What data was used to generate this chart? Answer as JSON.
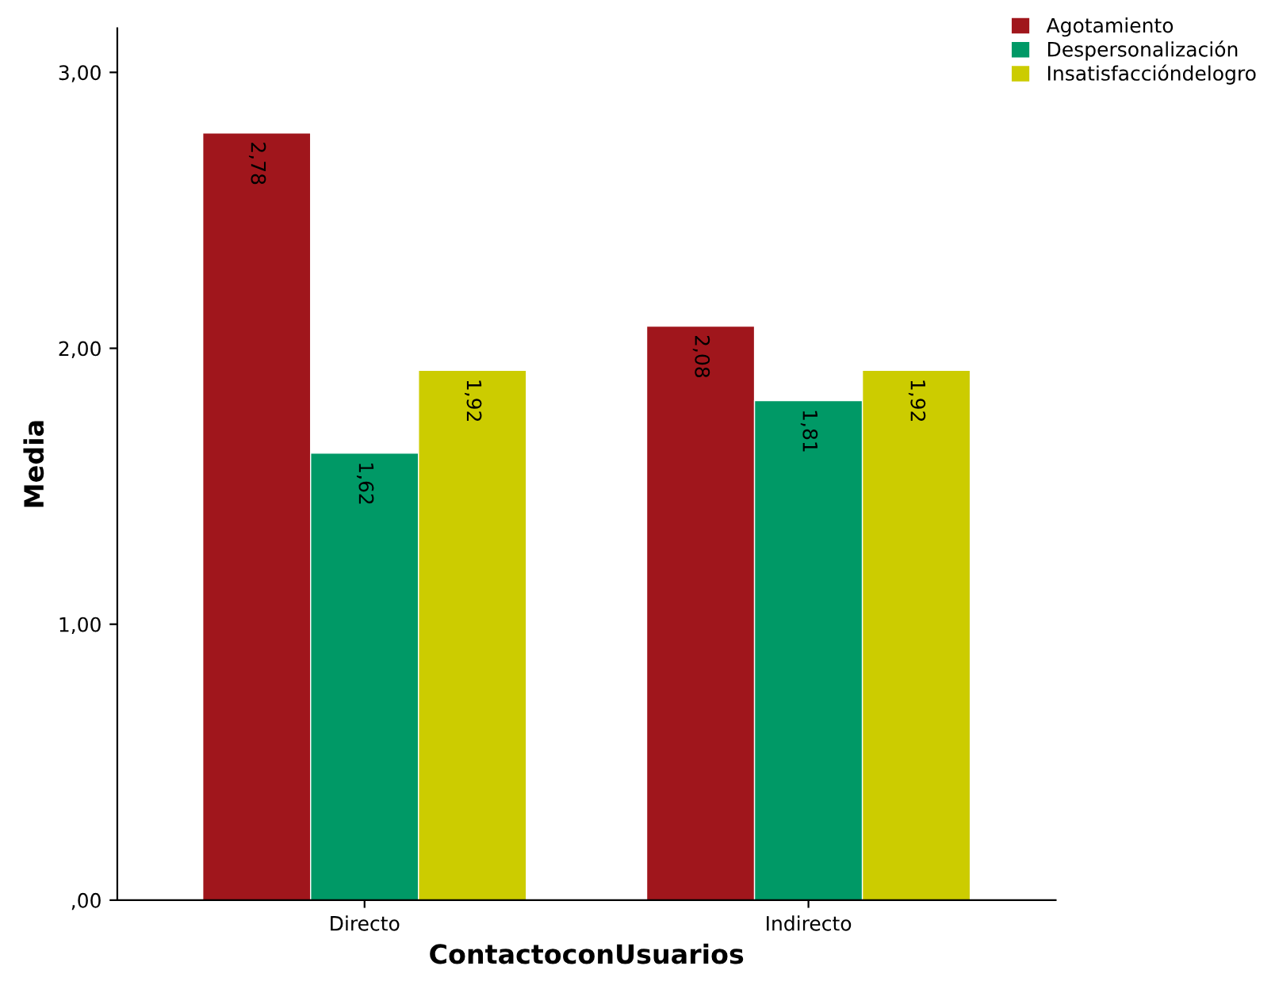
{
  "chart_data": {
    "type": "bar",
    "xlabel": "ContactoconUsuarios",
    "ylabel": "Media",
    "categories": [
      "Directo",
      "Indirecto"
    ],
    "series": [
      {
        "name": "Agotamiento",
        "color": "#a0161c",
        "values": [
          2.78,
          2.08
        ],
        "value_labels": [
          "2,78",
          "2,08"
        ]
      },
      {
        "name": "Despersonalización",
        "color": "#009966",
        "values": [
          1.62,
          1.81
        ],
        "value_labels": [
          "1,62",
          "1,81"
        ]
      },
      {
        "name": "Insatisfaccióndelogro",
        "color": "#cccc00",
        "values": [
          1.92,
          1.92
        ],
        "value_labels": [
          "1,92",
          "1,92"
        ]
      }
    ],
    "ylim": [
      0,
      3.16
    ],
    "yticks": [
      {
        "value": 0,
        "label": ",00"
      },
      {
        "value": 1,
        "label": "1,00"
      },
      {
        "value": 2,
        "label": "2,00"
      },
      {
        "value": 3,
        "label": "3,00"
      }
    ],
    "grid": false,
    "legend": "top right"
  }
}
